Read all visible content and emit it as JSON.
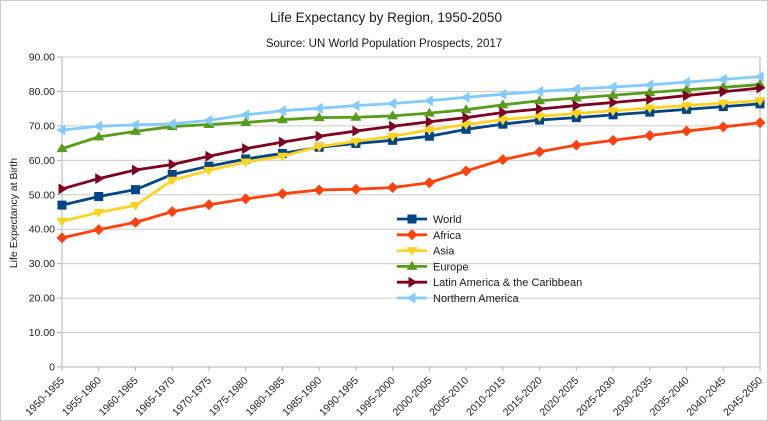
{
  "chart": {
    "title": "Life Expectancy by Region, 1950-2050",
    "subtitle": "Source: UN World Population Prospects, 2017",
    "ylabel": "Life Expectancy at Birth"
  },
  "chart_data": {
    "type": "line",
    "title": "Life Expectancy by Region, 1950-2050",
    "subtitle": "Source: UN World Population Prospects, 2017",
    "xlabel": "",
    "ylabel": "Life Expectancy at Birth",
    "ylim": [
      0,
      90
    ],
    "ytick_step": 10,
    "ytick_labels": [
      "0",
      "10.00",
      "20.00",
      "30.00",
      "40.00",
      "50.00",
      "60.00",
      "70.00",
      "80.00",
      "90.00"
    ],
    "grid": "horizontal",
    "grid_color": "#cccccc",
    "axis_color": "#b3b3b3",
    "border_color": "#cccccc",
    "x_label_rotation": -45,
    "legend_position": "floating-center",
    "categories": [
      "1950-1955",
      "1955-1960",
      "1960-1965",
      "1965-1970",
      "1970-1975",
      "1975-1980",
      "1980-1985",
      "1985-1990",
      "1990-1995",
      "1995-2000",
      "2000-2005",
      "2005-2010",
      "2010-2015",
      "2015-2020",
      "2020-2025",
      "2025-2030",
      "2030-2035",
      "2035-2040",
      "2040-2045",
      "2045-2050"
    ],
    "series": [
      {
        "name": "World",
        "color": "#004586",
        "marker": "square",
        "values": [
          47.0,
          49.5,
          51.5,
          55.9,
          58.3,
          60.4,
          62.0,
          63.8,
          64.9,
          65.8,
          67.0,
          69.0,
          70.5,
          71.7,
          72.4,
          73.2,
          74.0,
          74.8,
          75.6,
          76.4
        ]
      },
      {
        "name": "Africa",
        "color": "#FF420E",
        "marker": "diamond",
        "values": [
          37.5,
          39.9,
          42.0,
          45.1,
          47.1,
          48.8,
          50.3,
          51.4,
          51.6,
          52.1,
          53.5,
          56.9,
          60.2,
          62.5,
          64.4,
          65.8,
          67.2,
          68.5,
          69.7,
          70.9
        ]
      },
      {
        "name": "Asia",
        "color": "#FFD320",
        "marker": "triangle-down",
        "values": [
          42.3,
          44.9,
          46.9,
          54.2,
          57.1,
          59.5,
          61.2,
          64.0,
          65.5,
          67.0,
          68.8,
          70.4,
          71.8,
          72.8,
          73.6,
          74.4,
          75.2,
          75.9,
          76.6,
          77.3
        ]
      },
      {
        "name": "Europe",
        "color": "#579D1C",
        "marker": "triangle-up",
        "values": [
          63.4,
          66.8,
          68.4,
          69.8,
          70.4,
          71.0,
          71.8,
          72.4,
          72.5,
          72.9,
          73.7,
          74.7,
          76.1,
          77.3,
          78.1,
          78.9,
          79.7,
          80.5,
          81.2,
          82.0
        ]
      },
      {
        "name": "Latin America & the Caribbean",
        "color": "#7E0021",
        "marker": "triangle-right",
        "values": [
          51.7,
          54.7,
          57.2,
          58.8,
          61.2,
          63.4,
          65.3,
          67.0,
          68.5,
          69.9,
          71.2,
          72.4,
          73.9,
          74.9,
          75.9,
          76.8,
          77.7,
          78.8,
          79.9,
          81.0
        ]
      },
      {
        "name": "Northern America",
        "color": "#83CAFF",
        "marker": "triangle-left",
        "values": [
          68.8,
          69.9,
          70.3,
          70.6,
          71.6,
          73.2,
          74.4,
          75.1,
          75.9,
          76.5,
          77.3,
          78.3,
          79.2,
          80.0,
          80.7,
          81.3,
          81.9,
          82.7,
          83.5,
          84.3
        ]
      }
    ]
  }
}
